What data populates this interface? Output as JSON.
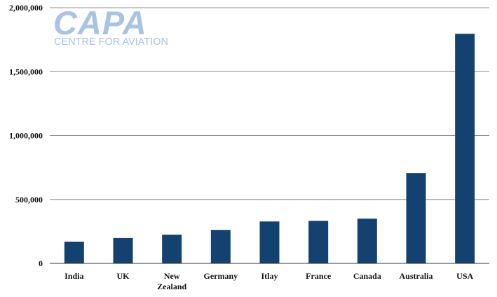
{
  "chart_data": {
    "type": "bar",
    "categories": [
      "India",
      "UK",
      "New Zealand",
      "Germany",
      "Itlay",
      "France",
      "Canada",
      "Australia",
      "USA"
    ],
    "category_lines": [
      [
        "India"
      ],
      [
        "UK"
      ],
      [
        "New",
        "Zealand"
      ],
      [
        "Germany"
      ],
      [
        "Itlay"
      ],
      [
        "France"
      ],
      [
        "Canada"
      ],
      [
        "Australia"
      ],
      [
        "USA"
      ]
    ],
    "values": [
      170000,
      198000,
      225000,
      262000,
      328000,
      333000,
      350000,
      706000,
      1796000
    ],
    "title": "",
    "xlabel": "",
    "ylabel": "",
    "ylim": [
      0,
      2000000
    ],
    "yticks": [
      0,
      500000,
      1000000,
      1500000,
      2000000
    ],
    "ytick_labels": [
      "0",
      "500,000",
      "1,000,000",
      "1,500,000",
      "2,000,000"
    ],
    "grid": true,
    "legend": "none",
    "colors": {
      "bar": "#134270",
      "grid": "#8c8c8c",
      "axis": "#333333"
    }
  },
  "watermark": {
    "logo_text": "CAPA",
    "logo_subtext": "CENTRE FOR AVIATION",
    "color": "#a9c3e4"
  }
}
